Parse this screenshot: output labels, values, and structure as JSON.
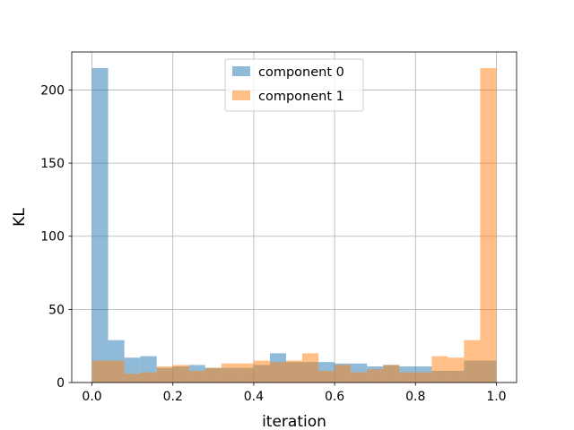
{
  "chart_data": {
    "type": "bar",
    "subtype": "overlapping-histogram",
    "title": "",
    "xlabel": "iteration",
    "ylabel": "KL",
    "xlim": [
      -0.05,
      1.05
    ],
    "ylim": [
      0,
      226
    ],
    "xticks": [
      0.0,
      0.2,
      0.4,
      0.6,
      0.8,
      1.0
    ],
    "xtick_labels": [
      "0.0",
      "0.2",
      "0.4",
      "0.6",
      "0.8",
      "1.0"
    ],
    "yticks": [
      0,
      50,
      100,
      150,
      200
    ],
    "ytick_labels": [
      "0",
      "50",
      "100",
      "150",
      "200"
    ],
    "grid": true,
    "legend_position": "upper center",
    "bin_edges": [
      0.0,
      0.04,
      0.08,
      0.12,
      0.16,
      0.2,
      0.24,
      0.28,
      0.32,
      0.36,
      0.4,
      0.44,
      0.48,
      0.52,
      0.56,
      0.6,
      0.64,
      0.68,
      0.72,
      0.76,
      0.8,
      0.84,
      0.88,
      0.92,
      0.96,
      1.0
    ],
    "series": [
      {
        "name": "component 0",
        "color": "#1f77b4",
        "alpha": 0.5,
        "values": [
          215,
          29,
          17,
          18,
          10,
          11,
          12,
          10,
          10,
          10,
          12,
          20,
          14,
          14,
          14,
          13,
          13,
          11,
          12,
          11,
          11,
          8,
          8,
          15,
          15
        ]
      },
      {
        "name": "component 1",
        "color": "#ff7f0e",
        "alpha": 0.5,
        "values": [
          15,
          15,
          6,
          7,
          11,
          12,
          8,
          10,
          13,
          13,
          15,
          14,
          15,
          20,
          8,
          12,
          7,
          9,
          12,
          7,
          7,
          18,
          17,
          29,
          215
        ]
      }
    ]
  }
}
